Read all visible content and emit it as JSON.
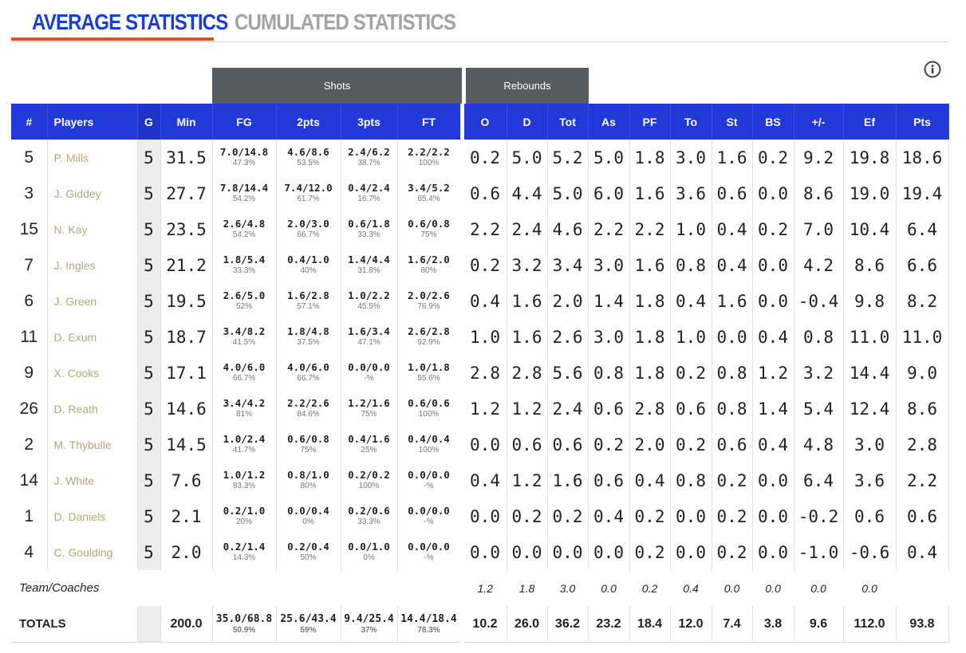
{
  "tabs": {
    "average": "AVERAGE STATISTICS",
    "cumulated": "CUMULATED STATISTICS"
  },
  "groups": {
    "shots": "Shots",
    "rebounds": "Rebounds"
  },
  "headers": [
    "#",
    "Players",
    "G",
    "Min",
    "FG",
    "2pts",
    "3pts",
    "FT",
    "O",
    "D",
    "Tot",
    "As",
    "PF",
    "To",
    "St",
    "BS",
    "+/-",
    "Ef",
    "Pts"
  ],
  "players": [
    {
      "no": "5",
      "name": "P. Mills",
      "g": "5",
      "min": "31.5",
      "fg": "7.0/14.8",
      "fg_pct": "47.3%",
      "p2": "4.6/8.6",
      "p2_pct": "53.5%",
      "p3": "2.4/6.2",
      "p3_pct": "38.7%",
      "ft": "2.2/2.2",
      "ft_pct": "100%",
      "o": "0.2",
      "d": "5.0",
      "tot": "5.2",
      "as": "5.0",
      "pf": "1.8",
      "to": "3.0",
      "st": "1.6",
      "bs": "0.2",
      "pm": "9.2",
      "ef": "19.8",
      "pts": "18.6"
    },
    {
      "no": "3",
      "name": "J. Giddey",
      "g": "5",
      "min": "27.7",
      "fg": "7.8/14.4",
      "fg_pct": "54.2%",
      "p2": "7.4/12.0",
      "p2_pct": "61.7%",
      "p3": "0.4/2.4",
      "p3_pct": "16.7%",
      "ft": "3.4/5.2",
      "ft_pct": "65.4%",
      "o": "0.6",
      "d": "4.4",
      "tot": "5.0",
      "as": "6.0",
      "pf": "1.6",
      "to": "3.6",
      "st": "0.6",
      "bs": "0.0",
      "pm": "8.6",
      "ef": "19.0",
      "pts": "19.4"
    },
    {
      "no": "15",
      "name": "N. Kay",
      "g": "5",
      "min": "23.5",
      "fg": "2.6/4.8",
      "fg_pct": "54.2%",
      "p2": "2.0/3.0",
      "p2_pct": "66.7%",
      "p3": "0.6/1.8",
      "p3_pct": "33.3%",
      "ft": "0.6/0.8",
      "ft_pct": "75%",
      "o": "2.2",
      "d": "2.4",
      "tot": "4.6",
      "as": "2.2",
      "pf": "2.2",
      "to": "1.0",
      "st": "0.4",
      "bs": "0.2",
      "pm": "7.0",
      "ef": "10.4",
      "pts": "6.4"
    },
    {
      "no": "7",
      "name": "J. Ingles",
      "g": "5",
      "min": "21.2",
      "fg": "1.8/5.4",
      "fg_pct": "33.3%",
      "p2": "0.4/1.0",
      "p2_pct": "40%",
      "p3": "1.4/4.4",
      "p3_pct": "31.8%",
      "ft": "1.6/2.0",
      "ft_pct": "80%",
      "o": "0.2",
      "d": "3.2",
      "tot": "3.4",
      "as": "3.0",
      "pf": "1.6",
      "to": "0.8",
      "st": "0.4",
      "bs": "0.0",
      "pm": "4.2",
      "ef": "8.6",
      "pts": "6.6"
    },
    {
      "no": "6",
      "name": "J. Green",
      "g": "5",
      "min": "19.5",
      "fg": "2.6/5.0",
      "fg_pct": "52%",
      "p2": "1.6/2.8",
      "p2_pct": "57.1%",
      "p3": "1.0/2.2",
      "p3_pct": "45.5%",
      "ft": "2.0/2.6",
      "ft_pct": "76.9%",
      "o": "0.4",
      "d": "1.6",
      "tot": "2.0",
      "as": "1.4",
      "pf": "1.8",
      "to": "0.4",
      "st": "1.6",
      "bs": "0.0",
      "pm": "-0.4",
      "ef": "9.8",
      "pts": "8.2"
    },
    {
      "no": "11",
      "name": "D. Exum",
      "g": "5",
      "min": "18.7",
      "fg": "3.4/8.2",
      "fg_pct": "41.5%",
      "p2": "1.8/4.8",
      "p2_pct": "37.5%",
      "p3": "1.6/3.4",
      "p3_pct": "47.1%",
      "ft": "2.6/2.8",
      "ft_pct": "92.9%",
      "o": "1.0",
      "d": "1.6",
      "tot": "2.6",
      "as": "3.0",
      "pf": "1.8",
      "to": "1.0",
      "st": "0.0",
      "bs": "0.4",
      "pm": "0.8",
      "ef": "11.0",
      "pts": "11.0"
    },
    {
      "no": "9",
      "name": "X. Cooks",
      "g": "5",
      "min": "17.1",
      "fg": "4.0/6.0",
      "fg_pct": "66.7%",
      "p2": "4.0/6.0",
      "p2_pct": "66.7%",
      "p3": "0.0/0.0",
      "p3_pct": "-%",
      "ft": "1.0/1.8",
      "ft_pct": "55.6%",
      "o": "2.8",
      "d": "2.8",
      "tot": "5.6",
      "as": "0.8",
      "pf": "1.8",
      "to": "0.2",
      "st": "0.8",
      "bs": "1.2",
      "pm": "3.2",
      "ef": "14.4",
      "pts": "9.0"
    },
    {
      "no": "26",
      "name": "D. Reath",
      "g": "5",
      "min": "14.6",
      "fg": "3.4/4.2",
      "fg_pct": "81%",
      "p2": "2.2/2.6",
      "p2_pct": "84.6%",
      "p3": "1.2/1.6",
      "p3_pct": "75%",
      "ft": "0.6/0.6",
      "ft_pct": "100%",
      "o": "1.2",
      "d": "1.2",
      "tot": "2.4",
      "as": "0.6",
      "pf": "2.8",
      "to": "0.6",
      "st": "0.8",
      "bs": "1.4",
      "pm": "5.4",
      "ef": "12.4",
      "pts": "8.6"
    },
    {
      "no": "2",
      "name": "M. Thybulle",
      "g": "5",
      "min": "14.5",
      "fg": "1.0/2.4",
      "fg_pct": "41.7%",
      "p2": "0.6/0.8",
      "p2_pct": "75%",
      "p3": "0.4/1.6",
      "p3_pct": "25%",
      "ft": "0.4/0.4",
      "ft_pct": "100%",
      "o": "0.0",
      "d": "0.6",
      "tot": "0.6",
      "as": "0.2",
      "pf": "2.0",
      "to": "0.2",
      "st": "0.6",
      "bs": "0.4",
      "pm": "4.8",
      "ef": "3.0",
      "pts": "2.8"
    },
    {
      "no": "14",
      "name": "J. White",
      "g": "5",
      "min": "7.6",
      "fg": "1.0/1.2",
      "fg_pct": "83.3%",
      "p2": "0.8/1.0",
      "p2_pct": "80%",
      "p3": "0.2/0.2",
      "p3_pct": "100%",
      "ft": "0.0/0.0",
      "ft_pct": "-%",
      "o": "0.4",
      "d": "1.2",
      "tot": "1.6",
      "as": "0.6",
      "pf": "0.4",
      "to": "0.8",
      "st": "0.2",
      "bs": "0.0",
      "pm": "6.4",
      "ef": "3.6",
      "pts": "2.2"
    },
    {
      "no": "1",
      "name": "D. Daniels",
      "g": "5",
      "min": "2.1",
      "fg": "0.2/1.0",
      "fg_pct": "20%",
      "p2": "0.0/0.4",
      "p2_pct": "0%",
      "p3": "0.2/0.6",
      "p3_pct": "33.3%",
      "ft": "0.0/0.0",
      "ft_pct": "-%",
      "o": "0.0",
      "d": "0.2",
      "tot": "0.2",
      "as": "0.4",
      "pf": "0.2",
      "to": "0.0",
      "st": "0.2",
      "bs": "0.0",
      "pm": "-0.2",
      "ef": "0.6",
      "pts": "0.6"
    },
    {
      "no": "4",
      "name": "C. Goulding",
      "g": "5",
      "min": "2.0",
      "fg": "0.2/1.4",
      "fg_pct": "14.3%",
      "p2": "0.2/0.4",
      "p2_pct": "50%",
      "p3": "0.0/1.0",
      "p3_pct": "0%",
      "ft": "0.0/0.0",
      "ft_pct": "-%",
      "o": "0.0",
      "d": "0.0",
      "tot": "0.0",
      "as": "0.0",
      "pf": "0.2",
      "to": "0.0",
      "st": "0.2",
      "bs": "0.0",
      "pm": "-1.0",
      "ef": "-0.6",
      "pts": "0.4"
    }
  ],
  "team": {
    "label": "Team/Coaches",
    "o": "1.2",
    "d": "1.8",
    "tot": "3.0",
    "as": "0.0",
    "pf": "0.2",
    "to": "0.4",
    "st": "0.0",
    "bs": "0.0",
    "pm": "0.0",
    "ef": "0.0",
    "pts": ""
  },
  "totals": {
    "label": "TOTALS",
    "min": "200.0",
    "fg": "35.0/68.8",
    "fg_pct": "50.9%",
    "p2": "25.6/43.4",
    "p2_pct": "59%",
    "p3": "9.4/25.4",
    "p3_pct": "37%",
    "ft": "14.4/18.4",
    "ft_pct": "78.3%",
    "o": "10.2",
    "d": "26.0",
    "tot": "36.2",
    "as": "23.2",
    "pf": "18.4",
    "to": "12.0",
    "st": "7.4",
    "bs": "3.8",
    "pm": "9.6",
    "ef": "112.0",
    "pts": "93.8"
  },
  "colors": {
    "header_blue": "#2239d9",
    "group_gray": "#575c63",
    "tab_active": "#1d3fd1",
    "tab_underline": "#ef4f1f",
    "player_name": "#b9a57a"
  },
  "icons": {
    "info": "info-circle-icon"
  }
}
